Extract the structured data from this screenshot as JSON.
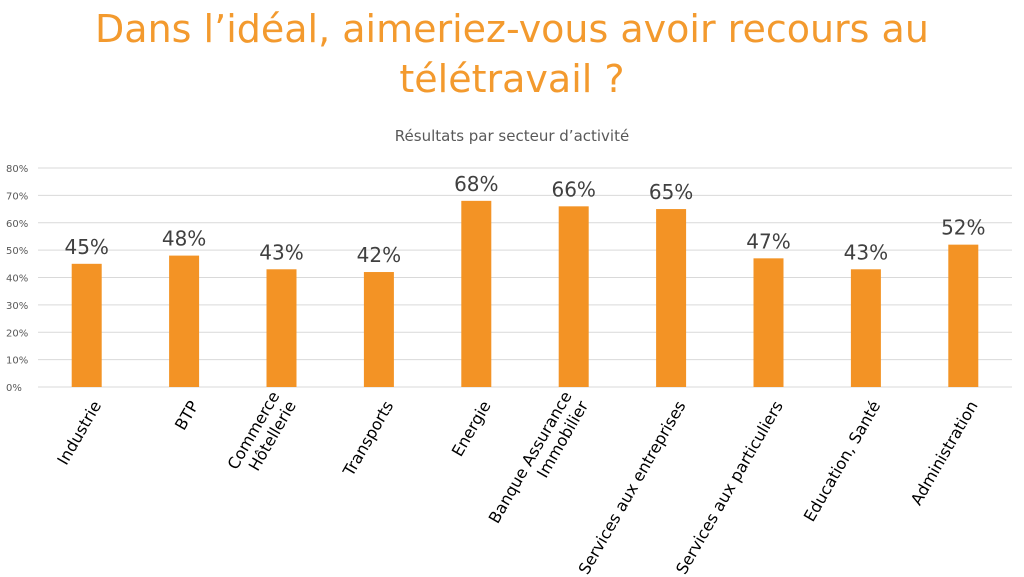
{
  "chart_data": {
    "type": "bar",
    "title": "Dans l’idéal, aimeriez-vous avoir recours au télétravail ?",
    "title_lines": [
      "Dans l’idéal, aimeriez-vous avoir recours au",
      "télétravail ?"
    ],
    "subtitle": "Résultats par secteur d’activité",
    "xlabel": "",
    "ylabel": "",
    "ylim": [
      0,
      80
    ],
    "yticks": [
      "0%",
      "10%",
      "20%",
      "30%",
      "40%",
      "50%",
      "60%",
      "70%",
      "80%"
    ],
    "grid": true,
    "legend": "none",
    "bar_color": "#F39325",
    "categories": [
      [
        "Industrie"
      ],
      [
        "BTP"
      ],
      [
        "Commerce",
        "Hôtellerie"
      ],
      [
        "Transports"
      ],
      [
        "Energie"
      ],
      [
        "Banque Assurance",
        "Immobilier"
      ],
      [
        "Services aux entreprises"
      ],
      [
        "Services aux particuliers"
      ],
      [
        "Education, Santé"
      ],
      [
        "Administration"
      ]
    ],
    "values": [
      45,
      48,
      43,
      42,
      68,
      66,
      65,
      47,
      43,
      52
    ],
    "data_labels": [
      "45%",
      "48%",
      "43%",
      "42%",
      "68%",
      "66%",
      "65%",
      "47%",
      "43%",
      "52%"
    ]
  }
}
